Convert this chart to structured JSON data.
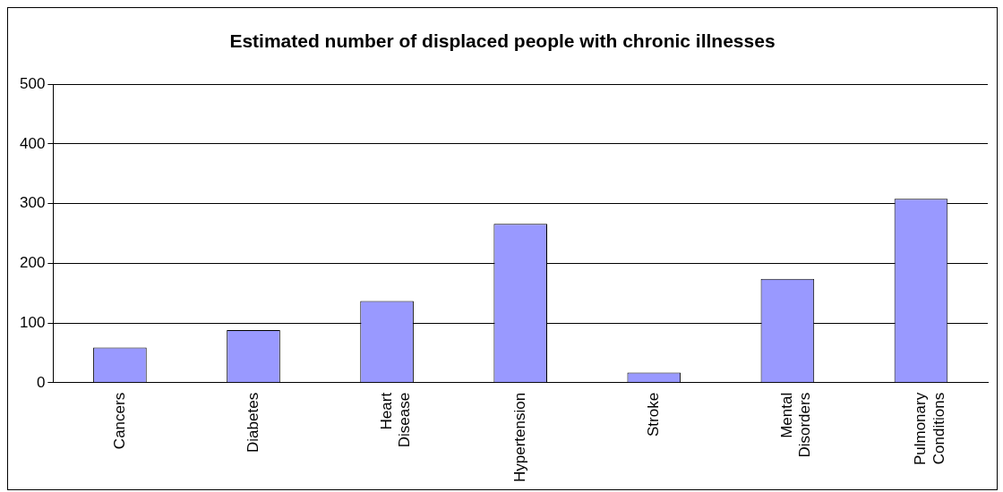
{
  "chart_data": {
    "type": "bar",
    "title": "Estimated number of displaced people with chronic illnesses",
    "categories": [
      "Cancers",
      "Diabetes",
      "Heart Disease",
      "Hypertension",
      "Stroke",
      "Mental Disorders",
      "Pulmonary Conditions"
    ],
    "values": [
      59,
      88,
      137,
      266,
      17,
      174,
      308
    ],
    "color": "#9999ff",
    "ylim": [
      0,
      500
    ],
    "yticks": [
      0,
      100,
      200,
      300,
      400,
      500
    ],
    "grid": "y",
    "legend": false
  }
}
